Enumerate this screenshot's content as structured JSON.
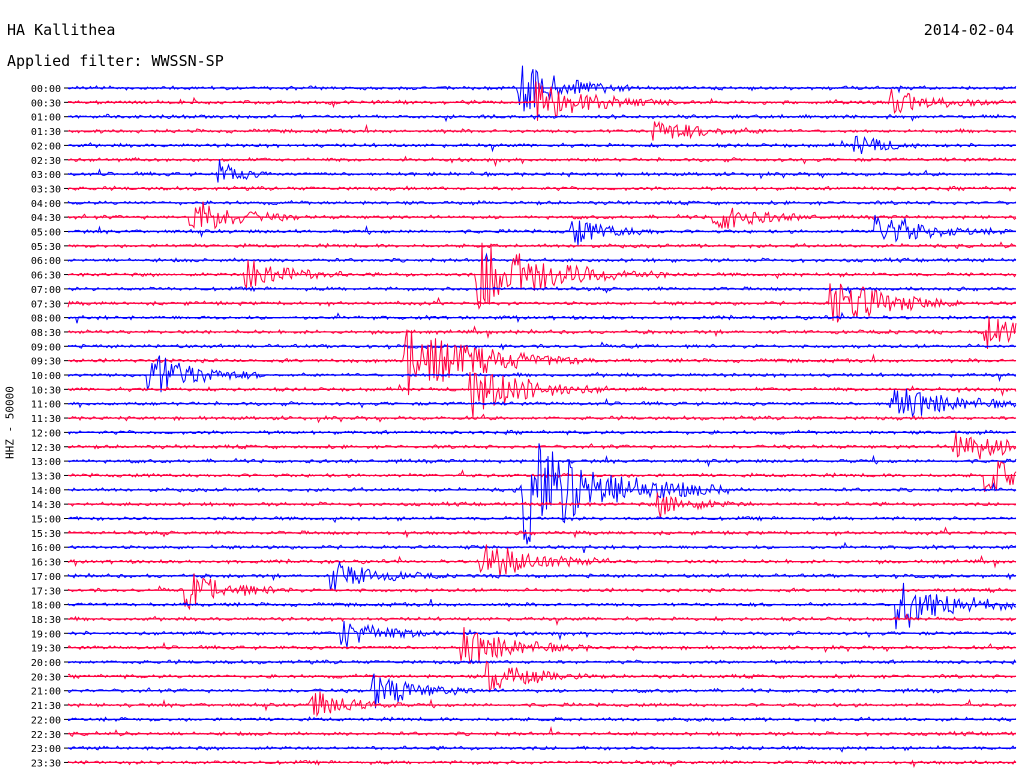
{
  "header": {
    "station": "HA Kallithea",
    "date": "2014-02-04",
    "filter": "Applied filter: WWSSN-SP"
  },
  "colors": {
    "odd": "#0000ff",
    "even": "#ff0040"
  },
  "chart_data": {
    "type": "seismogram",
    "ylabel": "HHZ - 50000",
    "rows": [
      "00:00",
      "00:30",
      "01:00",
      "01:30",
      "02:00",
      "02:30",
      "03:00",
      "03:30",
      "04:00",
      "04:30",
      "05:00",
      "05:30",
      "06:00",
      "06:30",
      "07:00",
      "07:30",
      "08:00",
      "08:30",
      "09:00",
      "09:30",
      "10:00",
      "10:30",
      "11:00",
      "11:30",
      "12:00",
      "12:30",
      "13:00",
      "13:30",
      "14:00",
      "14:30",
      "15:00",
      "15:30",
      "16:00",
      "16:30",
      "17:00",
      "17:30",
      "18:00",
      "18:30",
      "19:00",
      "19:30",
      "20:00",
      "20:30",
      "21:00",
      "21:30",
      "22:00",
      "22:30",
      "23:00",
      "23:30"
    ],
    "row_colors": [
      "blue",
      "red"
    ],
    "x_range_minutes": [
      0,
      30
    ],
    "events": [
      {
        "row": 0,
        "minute": 14.2,
        "amp": 30,
        "dur": 1.2
      },
      {
        "row": 1,
        "minute": 14.8,
        "amp": 20,
        "dur": 1.5
      },
      {
        "row": 1,
        "minute": 26.0,
        "amp": 14,
        "dur": 1.2
      },
      {
        "row": 3,
        "minute": 18.5,
        "amp": 12,
        "dur": 1.3
      },
      {
        "row": 4,
        "minute": 24.8,
        "amp": 14,
        "dur": 0.8
      },
      {
        "row": 6,
        "minute": 4.7,
        "amp": 16,
        "dur": 0.6
      },
      {
        "row": 9,
        "minute": 3.8,
        "amp": 22,
        "dur": 1.2
      },
      {
        "row": 9,
        "minute": 20.4,
        "amp": 16,
        "dur": 1.2
      },
      {
        "row": 10,
        "minute": 15.9,
        "amp": 16,
        "dur": 1.0
      },
      {
        "row": 10,
        "minute": 25.5,
        "amp": 18,
        "dur": 1.4
      },
      {
        "row": 13,
        "minute": 5.6,
        "amp": 20,
        "dur": 1.1
      },
      {
        "row": 13,
        "minute": 12.9,
        "amp": 40,
        "dur": 2.0
      },
      {
        "row": 15,
        "minute": 24.1,
        "amp": 30,
        "dur": 1.5
      },
      {
        "row": 17,
        "minute": 29.0,
        "amp": 18,
        "dur": 1.2
      },
      {
        "row": 19,
        "minute": 10.6,
        "amp": 40,
        "dur": 2.0
      },
      {
        "row": 20,
        "minute": 2.5,
        "amp": 28,
        "dur": 1.2
      },
      {
        "row": 21,
        "minute": 12.7,
        "amp": 30,
        "dur": 1.5
      },
      {
        "row": 22,
        "minute": 26.0,
        "amp": 20,
        "dur": 1.6
      },
      {
        "row": 25,
        "minute": 28.0,
        "amp": 20,
        "dur": 1.4
      },
      {
        "row": 27,
        "minute": 29.0,
        "amp": 18,
        "dur": 1.4
      },
      {
        "row": 28,
        "minute": 14.3,
        "amp": 60,
        "dur": 2.2
      },
      {
        "row": 29,
        "minute": 18.6,
        "amp": 14,
        "dur": 1.0
      },
      {
        "row": 33,
        "minute": 13.0,
        "amp": 24,
        "dur": 1.4
      },
      {
        "row": 34,
        "minute": 8.3,
        "amp": 16,
        "dur": 1.2
      },
      {
        "row": 35,
        "minute": 3.7,
        "amp": 20,
        "dur": 1.2
      },
      {
        "row": 36,
        "minute": 26.2,
        "amp": 28,
        "dur": 1.6
      },
      {
        "row": 38,
        "minute": 8.6,
        "amp": 16,
        "dur": 1.2
      },
      {
        "row": 39,
        "minute": 12.4,
        "amp": 22,
        "dur": 1.4
      },
      {
        "row": 41,
        "minute": 13.2,
        "amp": 18,
        "dur": 1.2
      },
      {
        "row": 42,
        "minute": 9.6,
        "amp": 20,
        "dur": 1.2
      },
      {
        "row": 43,
        "minute": 7.6,
        "amp": 18,
        "dur": 1.0
      }
    ]
  }
}
